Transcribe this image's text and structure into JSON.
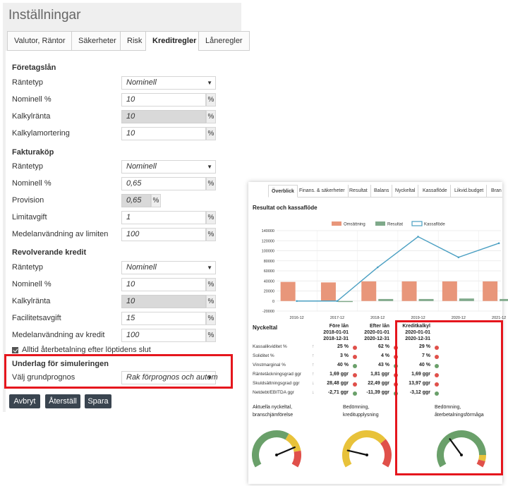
{
  "settings": {
    "title": "Inställningar",
    "tabs": [
      "Valutor, Räntor",
      "Säkerheter",
      "Risk",
      "Kreditregler",
      "Låneregler"
    ],
    "sections": {
      "foretagslan": {
        "title": "Företagslån",
        "rantetyp_label": "Räntetyp",
        "rantetyp_value": "Nominell",
        "nominell_label": "Nominell %",
        "nominell_value": "10",
        "kalkylranta_label": "Kalkylränta",
        "kalkylranta_value": "10",
        "kalkylamortering_label": "Kalkylamortering",
        "kalkylamortering_value": "10"
      },
      "fakturakop": {
        "title": "Fakturaköp",
        "rantetyp_label": "Räntetyp",
        "rantetyp_value": "Nominell",
        "nominell_label": "Nominell %",
        "nominell_value": "0,65",
        "provision_label": "Provision",
        "provision_value": "0,65",
        "limitavgift_label": "Limitavgift",
        "limitavgift_value": "1",
        "medelanv_label": "Medelanvändning av limiten",
        "medelanv_value": "100"
      },
      "revolverande": {
        "title": "Revolverande kredit",
        "rantetyp_label": "Räntetyp",
        "rantetyp_value": "Nominell",
        "nominell_label": "Nominell %",
        "nominell_value": "10",
        "kalkylranta_label": "Kalkylränta",
        "kalkylranta_value": "10",
        "facilitet_label": "Facilitetsavgift",
        "facilitet_value": "15",
        "medelanv_label": "Medelanvändning av kredit",
        "medelanv_value": "100"
      }
    },
    "unit": "%",
    "checkbox_label": "Alltid återbetalning efter löptidens slut",
    "simulering": {
      "title": "Underlag för simuleringen",
      "label": "Välj grundprognos",
      "value": "Rak förprognos och autom"
    },
    "buttons": {
      "cancel": "Avbryt",
      "reset": "Återställ",
      "save": "Spara"
    }
  },
  "dashboard": {
    "tabs": [
      "Överblick",
      "Finans. & säkerheter",
      "Resultat",
      "Balans",
      "Nyckeltal",
      "Kassaflöde",
      "Likvid.budget",
      "Bran"
    ],
    "colors": {
      "omsattning": "#e8967a",
      "resultat": "#7fa98a",
      "kassaflode": "#4a9fc2",
      "green": "#6aa06a",
      "red": "#e0504a",
      "yellow": "#e8c23a"
    },
    "nyckeltal": {
      "title": "Nyckeltal",
      "columns": [
        {
          "l1": "Före lån",
          "l2": "2018-01-01",
          "l3": "2018-12-31"
        },
        {
          "l1": "Efter lån",
          "l2": "2020-01-01",
          "l3": "2020-12-31"
        },
        {
          "l1": "Kreditkalkyl",
          "l2": "2020-01-01",
          "l3": "2020-12-31"
        }
      ],
      "rows": [
        {
          "label": "Kassalikviditet %",
          "arrow": "↑",
          "v": [
            "25 %",
            "62 %",
            "29 %"
          ],
          "d": [
            "red",
            "red",
            "red"
          ]
        },
        {
          "label": "Soliditet %",
          "arrow": "↑",
          "v": [
            "3 %",
            "4 %",
            "7 %"
          ],
          "d": [
            "red",
            "red",
            "red"
          ]
        },
        {
          "label": "Vinstmarginal %",
          "arrow": "↑",
          "v": [
            "40 %",
            "43 %",
            "40 %"
          ],
          "d": [
            "green",
            "green",
            "green"
          ]
        },
        {
          "label": "Räntetäckningsgrad ggr",
          "arrow": "↑",
          "v": [
            "1,69 ggr",
            "1,81 ggr",
            "1,69 ggr"
          ],
          "d": [
            "red",
            "red",
            "red"
          ]
        },
        {
          "label": "Skuldsättningsgrad ggr",
          "arrow": "↓",
          "v": [
            "28,48 ggr",
            "22,49 ggr",
            "13,97 ggr"
          ],
          "d": [
            "red",
            "red",
            "red"
          ]
        },
        {
          "label": "Netdebt/EBITDA ggr",
          "arrow": "↓",
          "v": [
            "-2,71 ggr",
            "-11,39 ggr",
            "-3,12 ggr"
          ],
          "d": [
            "green",
            "green",
            "green"
          ]
        }
      ]
    },
    "gauges": [
      {
        "l1": "Aktuella nyckeltal,",
        "l2": "branschjämförelse",
        "value": 0.78
      },
      {
        "l1": "Bedömning,",
        "l2": "kreditupplysning",
        "value": 0.18
      },
      {
        "l1": "Bedömning,",
        "l2": "återbetalningsförmåga",
        "value": 0.35
      }
    ]
  },
  "chart_data": {
    "type": "bar",
    "title": "Resultat och kassaflöde",
    "categories": [
      "2016-12",
      "2017-12",
      "2018-12",
      "2019-12",
      "2020-12",
      "2021-12"
    ],
    "series": [
      {
        "name": "Omsättning",
        "type": "bar",
        "values": [
          38000,
          37000,
          39000,
          39000,
          39000,
          39000
        ]
      },
      {
        "name": "Resultat",
        "type": "bar",
        "values": [
          1000,
          -2000,
          4000,
          4000,
          5000,
          4000
        ]
      },
      {
        "name": "Kassaflöde",
        "type": "line",
        "values": [
          0,
          0,
          67000,
          128000,
          87000,
          115000
        ]
      }
    ],
    "ylim": [
      -20000,
      140000
    ],
    "yticks": [
      "140000",
      "120000",
      "100000",
      "80000",
      "60000",
      "40000",
      "20000",
      "0",
      "-20000"
    ],
    "legend": "top-center",
    "grid": true
  }
}
